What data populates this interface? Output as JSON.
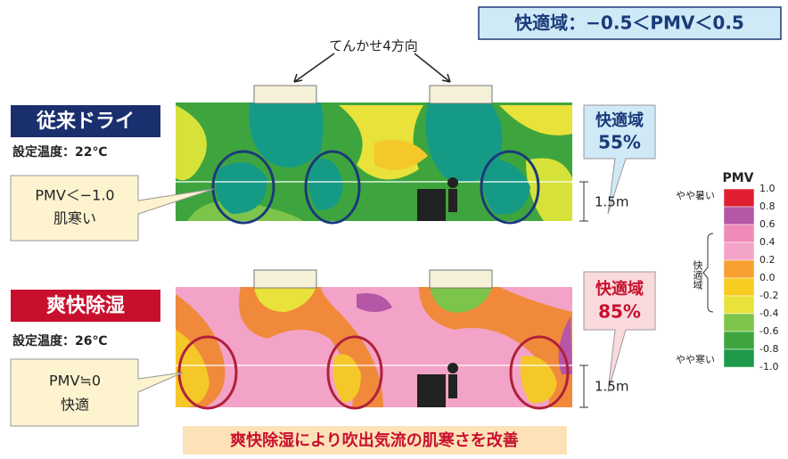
{
  "header": {
    "comfort_range": "快適域：−0.5＜PMV＜0.5"
  },
  "ac_label": "てんかせ4方向",
  "panels": [
    {
      "label": "従来ドライ",
      "setting": "設定温度：22℃",
      "callout": [
        "PMV＜−1.0",
        "肌寒い"
      ],
      "comfort": [
        "快適域",
        "55%"
      ],
      "height": "1.5m"
    },
    {
      "label": "爽快除湿",
      "setting": "設定温度：26℃",
      "callout": [
        "PMV≒0",
        "快適"
      ],
      "comfort": [
        "快適域",
        "85%"
      ],
      "height": "1.5m"
    }
  ],
  "legend": {
    "title": "PMV",
    "ticks": [
      "1.0",
      "0.8",
      "0.6",
      "0.4",
      "0.2",
      "0.0",
      "-0.2",
      "-0.4",
      "-0.6",
      "-0.8",
      "-1.0"
    ],
    "hot": "やや暑い",
    "comfort": "快適域",
    "cold": "やや寒い"
  },
  "footer": "爽快除湿により吹出気流の肌寒さを改善"
}
